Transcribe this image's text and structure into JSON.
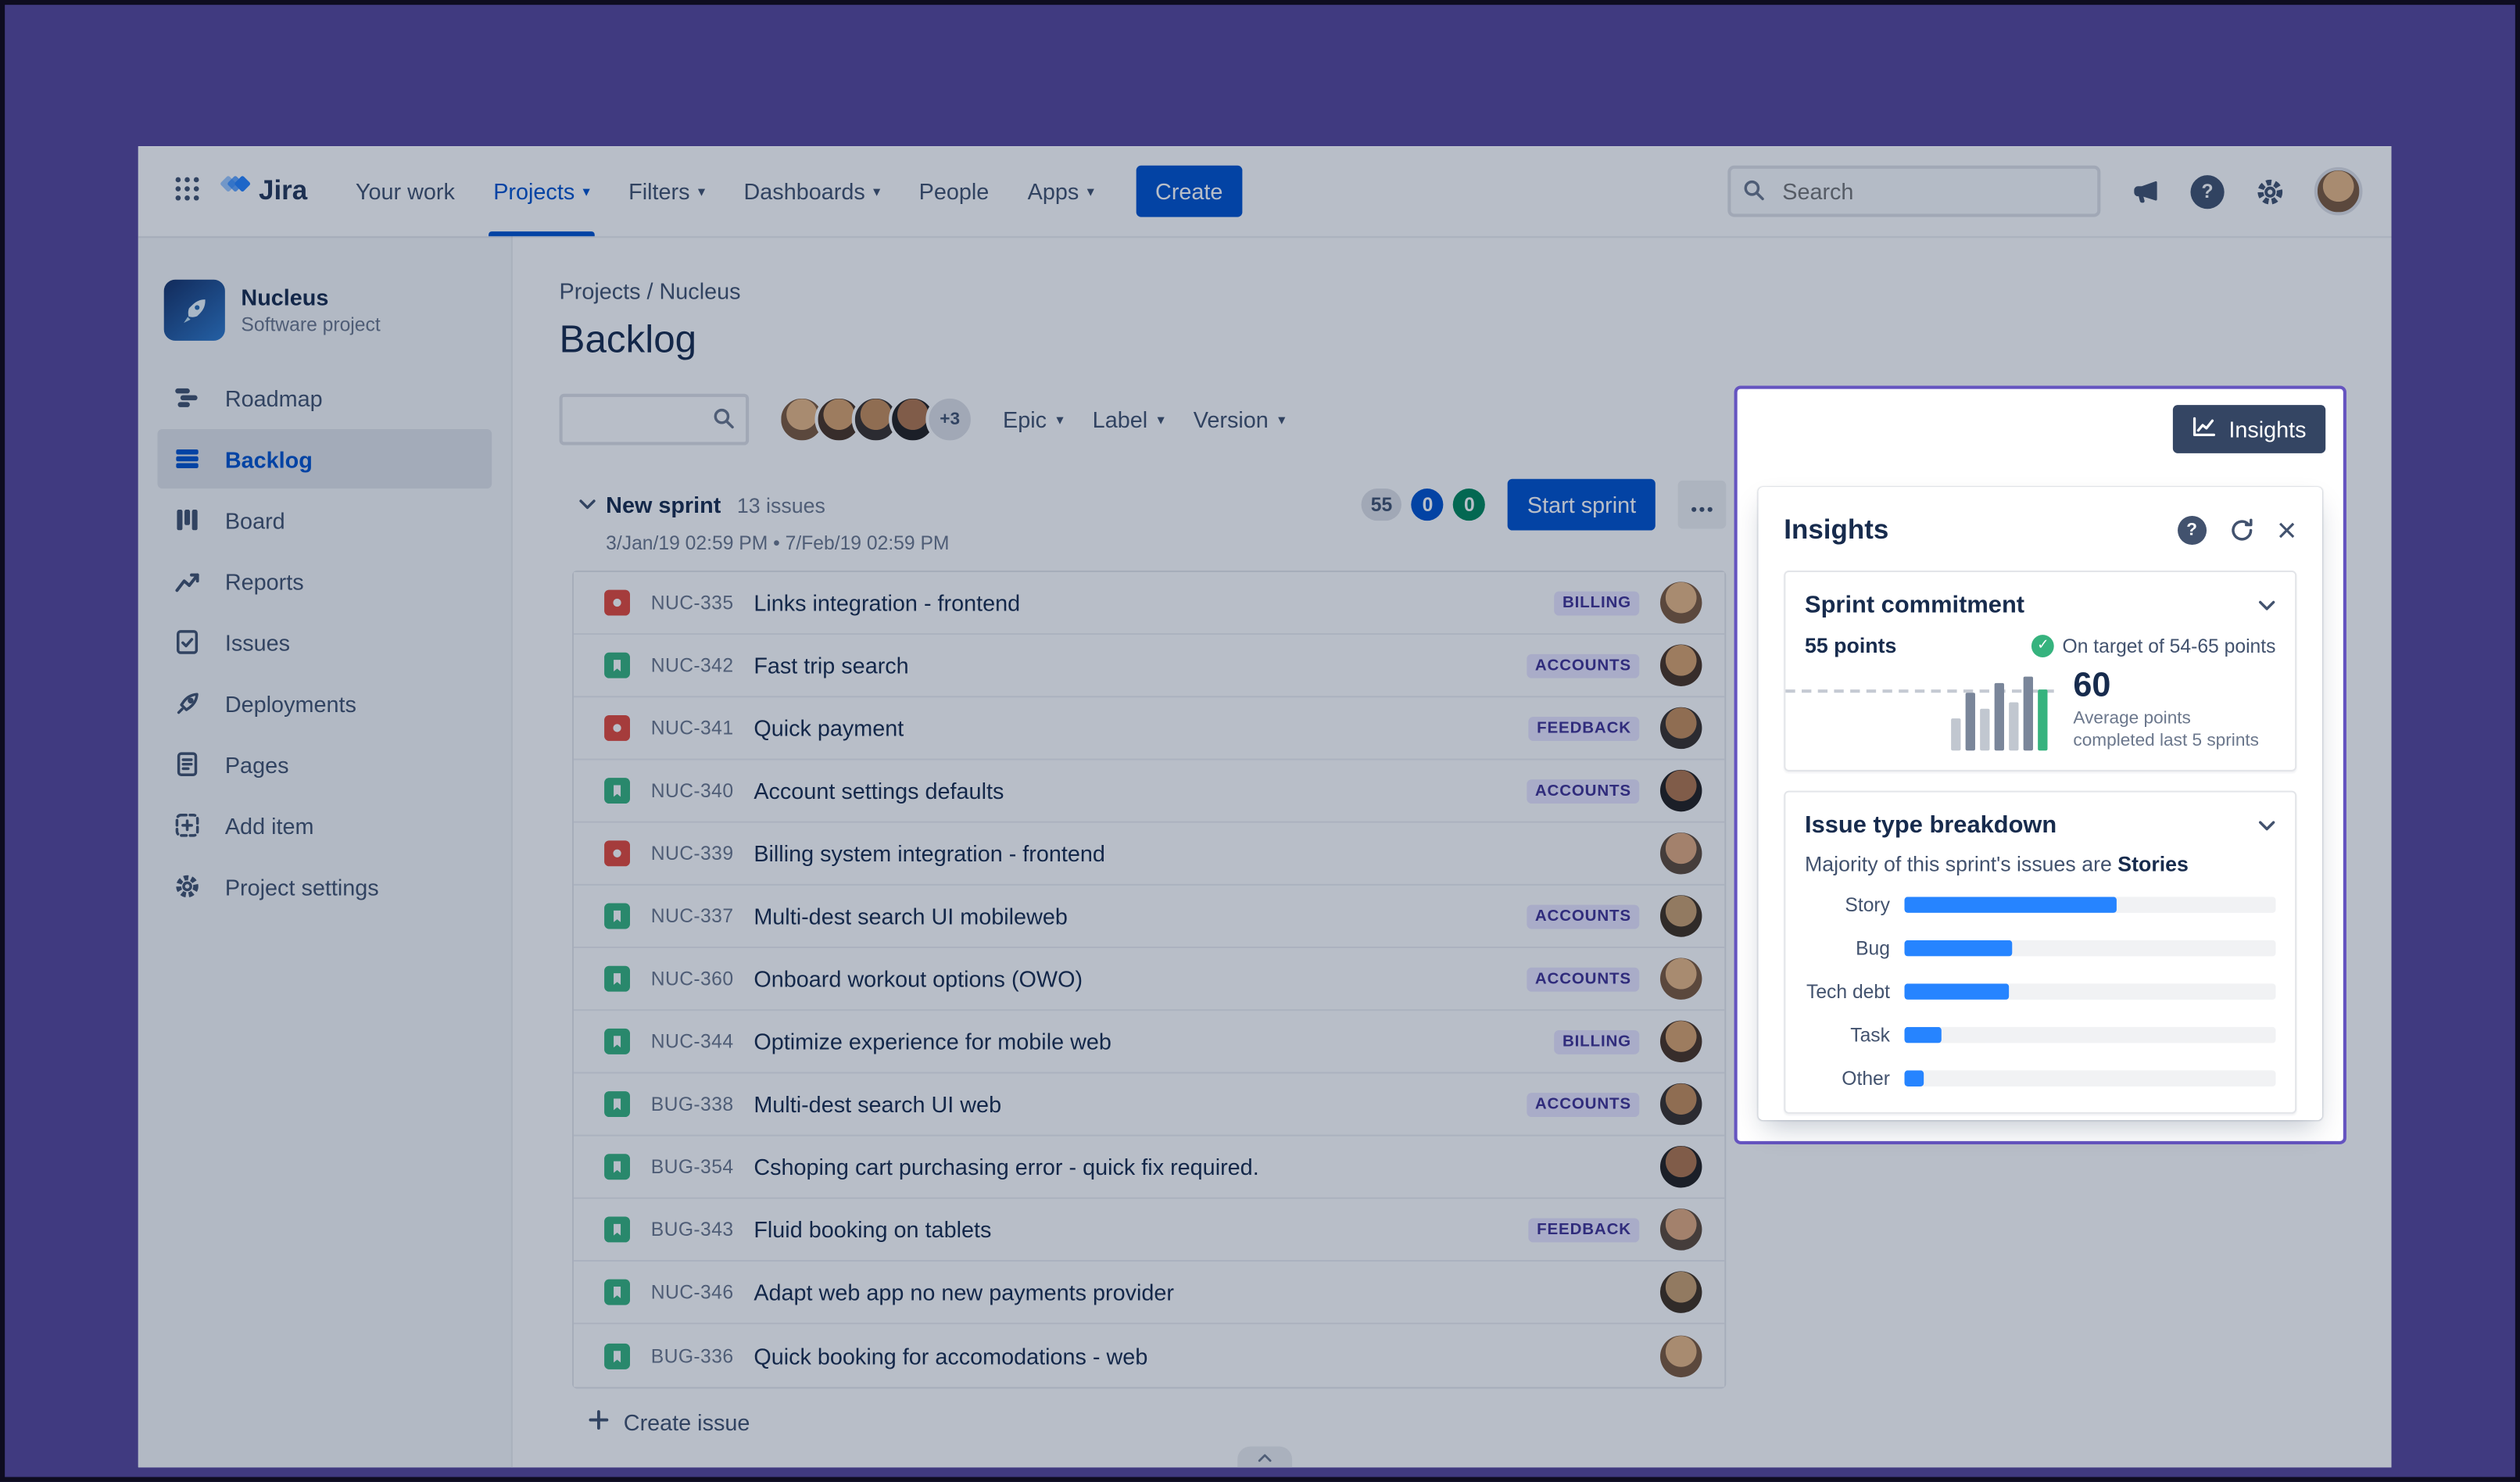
{
  "colors": {
    "accent_blue": "#0052CC",
    "bar_fill": "#2684FF",
    "spotlight_border": "#6554C0",
    "story_green": "#36B37E",
    "bug_red": "#E5493A"
  },
  "icons": {
    "check": "✓",
    "close": "×",
    "chevron_down": "▾",
    "help": "?"
  },
  "nav": {
    "app_name": "Jira",
    "items": [
      {
        "label": "Your work",
        "dropdown": false,
        "active": false
      },
      {
        "label": "Projects",
        "dropdown": true,
        "active": true
      },
      {
        "label": "Filters",
        "dropdown": true,
        "active": false
      },
      {
        "label": "Dashboards",
        "dropdown": true,
        "active": false
      },
      {
        "label": "People",
        "dropdown": false,
        "active": false
      },
      {
        "label": "Apps",
        "dropdown": true,
        "active": false
      }
    ],
    "create_label": "Create",
    "search_placeholder": "Search"
  },
  "sidebar": {
    "project_name": "Nucleus",
    "project_type": "Software project",
    "items": [
      {
        "label": "Roadmap",
        "icon": "roadmap-icon",
        "active": false
      },
      {
        "label": "Backlog",
        "icon": "backlog-icon",
        "active": true
      },
      {
        "label": "Board",
        "icon": "board-icon",
        "active": false
      },
      {
        "label": "Reports",
        "icon": "reports-icon",
        "active": false
      },
      {
        "label": "Issues",
        "icon": "issues-icon",
        "active": false
      },
      {
        "label": "Deployments",
        "icon": "deployments-icon",
        "active": false
      },
      {
        "label": "Pages",
        "icon": "pages-icon",
        "active": false
      },
      {
        "label": "Add item",
        "icon": "add-item-icon",
        "active": false
      },
      {
        "label": "Project settings",
        "icon": "settings-icon",
        "active": false
      }
    ]
  },
  "content": {
    "breadcrumb": "Projects / Nucleus",
    "page_title": "Backlog",
    "filter_bar": {
      "more_avatars": "+3",
      "epic": "Epic",
      "label": "Label",
      "version": "Version"
    },
    "sprint": {
      "name": "New sprint",
      "issue_count": "13 issues",
      "date_range": "3/Jan/19 02:59 PM • 7/Feb/19 02:59 PM",
      "badges": [
        {
          "value": "55",
          "bg": "#DFE1E6",
          "fg": "#42526E"
        },
        {
          "value": "0",
          "bg": "#0052CC",
          "fg": "#FFFFFF"
        },
        {
          "value": "0",
          "bg": "#00875A",
          "fg": "#FFFFFF"
        }
      ],
      "start_button": "Start sprint"
    },
    "issues": [
      {
        "type": "bug",
        "key": "NUC-335",
        "title": "Links integration - frontend",
        "label": "BILLING"
      },
      {
        "type": "story",
        "key": "NUC-342",
        "title": "Fast trip search",
        "label": "ACCOUNTS"
      },
      {
        "type": "bug",
        "key": "NUC-341",
        "title": "Quick payment",
        "label": "FEEDBACK"
      },
      {
        "type": "story",
        "key": "NUC-340",
        "title": "Account settings defaults",
        "label": "ACCOUNTS"
      },
      {
        "type": "bug",
        "key": "NUC-339",
        "title": "Billing system integration - frontend",
        "label": ""
      },
      {
        "type": "story",
        "key": "NUC-337",
        "title": "Multi-dest search UI mobileweb",
        "label": "ACCOUNTS"
      },
      {
        "type": "story",
        "key": "NUC-360",
        "title": "Onboard workout options (OWO)",
        "label": "ACCOUNTS"
      },
      {
        "type": "story",
        "key": "NUC-344",
        "title": "Optimize experience for mobile web",
        "label": "BILLING"
      },
      {
        "type": "story",
        "key": "BUG-338",
        "title": "Multi-dest search UI web",
        "label": "ACCOUNTS"
      },
      {
        "type": "story",
        "key": "BUG-354",
        "title": "Cshoping cart purchasing error - quick fix required.",
        "label": ""
      },
      {
        "type": "story",
        "key": "BUG-343",
        "title": "Fluid booking on tablets",
        "label": "FEEDBACK"
      },
      {
        "type": "story",
        "key": "NUC-346",
        "title": "Adapt web app no new payments provider",
        "label": ""
      },
      {
        "type": "story",
        "key": "BUG-336",
        "title": "Quick booking for accomodations - web",
        "label": ""
      }
    ],
    "create_issue_label": "Create issue"
  },
  "insights": {
    "toggle_button": "Insights",
    "panel_title": "Insights",
    "sprint_commitment": {
      "title": "Sprint commitment",
      "points": "55 points",
      "status": "On target of 54-65 points",
      "average_value": "60",
      "average_caption": "Average points completed last 5 sprints",
      "chart": {
        "type": "bar",
        "bars": [
          {
            "value": 20,
            "color": "#C1C7D0"
          },
          {
            "value": 36,
            "color": "#7A869A"
          },
          {
            "value": 26,
            "color": "#C1C7D0"
          },
          {
            "value": 42,
            "color": "#7A869A"
          },
          {
            "value": 30,
            "color": "#C1C7D0"
          },
          {
            "value": 46,
            "color": "#7A869A"
          },
          {
            "value": 38,
            "color": "#36B37E"
          }
        ],
        "target_line": 36
      }
    },
    "issue_breakdown": {
      "title": "Issue type breakdown",
      "summary_prefix": "Majority of this sprint's issues are ",
      "summary_emphasis": "Stories",
      "type": "bar",
      "rows": [
        {
          "label": "Story",
          "percent": 57
        },
        {
          "label": "Bug",
          "percent": 29
        },
        {
          "label": "Tech debt",
          "percent": 28
        },
        {
          "label": "Task",
          "percent": 10
        },
        {
          "label": "Other",
          "percent": 5
        }
      ]
    }
  }
}
